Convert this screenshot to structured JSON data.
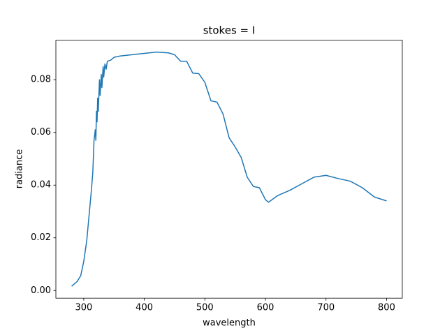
{
  "chart_data": {
    "type": "line",
    "title": "stokes = I",
    "x_label": "wavelength",
    "y_label": "radiance",
    "x": [
      280,
      289,
      295,
      300,
      305,
      309,
      313,
      315,
      317,
      319,
      320,
      321,
      322,
      323,
      324,
      326,
      327,
      329,
      330,
      332,
      333,
      335,
      337,
      339,
      345,
      350,
      360,
      380,
      400,
      420,
      440,
      450,
      460,
      470,
      480,
      490,
      500,
      510,
      520,
      530,
      540,
      550,
      560,
      570,
      580,
      590,
      600,
      605,
      620,
      640,
      660,
      680,
      700,
      720,
      740,
      760,
      780,
      800
    ],
    "series": [
      {
        "name": "radiance",
        "color": "#1f77b4",
        "values": [
          0.0016,
          0.0034,
          0.0056,
          0.011,
          0.019,
          0.029,
          0.039,
          0.045,
          0.057,
          0.061,
          0.057,
          0.068,
          0.064,
          0.073,
          0.068,
          0.08,
          0.074,
          0.082,
          0.077,
          0.085,
          0.081,
          0.086,
          0.084,
          0.087,
          0.0875,
          0.0885,
          0.089,
          0.0895,
          0.09,
          0.0905,
          0.0902,
          0.0895,
          0.087,
          0.087,
          0.0825,
          0.0823,
          0.079,
          0.072,
          0.0715,
          0.067,
          0.058,
          0.0545,
          0.0505,
          0.043,
          0.0395,
          0.039,
          0.0345,
          0.0335,
          0.036,
          0.038,
          0.0405,
          0.043,
          0.0437,
          0.0425,
          0.0415,
          0.039,
          0.0355,
          0.034
        ]
      }
    ],
    "xlim": [
      254,
      826
    ],
    "xticks": [
      300,
      400,
      500,
      600,
      700,
      800
    ],
    "ylim": [
      -0.0029,
      0.095
    ],
    "yticks": [
      {
        "value": 0,
        "label": "0.00"
      },
      0.02,
      0.04,
      0.06,
      0.08
    ]
  }
}
